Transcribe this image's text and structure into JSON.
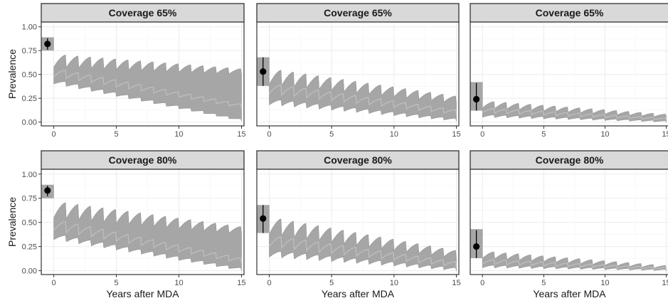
{
  "chart_data": {
    "type": "area",
    "xlabel": "Years after MDA",
    "ylabel": "Prevalence",
    "xlim": [
      -1,
      15.2
    ],
    "ylim": [
      -0.04,
      1.05
    ],
    "x_ticks": [
      "0",
      "5",
      "10",
      "15"
    ],
    "y_ticks": [
      "0.00",
      "0.25",
      "0.50",
      "0.75",
      "1.00"
    ],
    "grid": true,
    "colors": {
      "band": "#a6a6a6",
      "median_line": "#bdbdbd",
      "strip": "#d9d9d9",
      "point": "#000000"
    },
    "panels": [
      {
        "title": "Coverage 65%",
        "row": 0,
        "col": 0,
        "baseline": {
          "x": -0.5,
          "y": 0.82,
          "low": 0.76,
          "high": 0.88,
          "box_low": 0.75,
          "box_high": 0.89
        },
        "band_start": [
          0.4,
          0.58
        ],
        "band_end": [
          0.01,
          0.5
        ],
        "median_start": 0.48,
        "median_end": 0.15
      },
      {
        "title": "Coverage 65%",
        "row": 0,
        "col": 1,
        "baseline": {
          "x": -0.5,
          "y": 0.53,
          "low": 0.38,
          "high": 0.68,
          "box_low": 0.38,
          "box_high": 0.68
        },
        "band_start": [
          0.18,
          0.4
        ],
        "band_end": [
          0.01,
          0.2
        ],
        "median_start": 0.3,
        "median_end": 0.08
      },
      {
        "title": "Coverage 65%",
        "row": 0,
        "col": 2,
        "baseline": {
          "x": -0.5,
          "y": 0.24,
          "low": 0.12,
          "high": 0.41,
          "box_low": 0.12,
          "box_high": 0.42
        },
        "band_start": [
          0.05,
          0.15
        ],
        "band_end": [
          0.0,
          0.05
        ],
        "median_start": 0.1,
        "median_end": 0.02
      },
      {
        "title": "Coverage 80%",
        "row": 1,
        "col": 0,
        "baseline": {
          "x": -0.5,
          "y": 0.83,
          "low": 0.77,
          "high": 0.88,
          "box_low": 0.75,
          "box_high": 0.89
        },
        "band_start": [
          0.32,
          0.55
        ],
        "band_end": [
          0.0,
          0.38
        ],
        "median_start": 0.42,
        "median_end": 0.08
      },
      {
        "title": "Coverage 80%",
        "row": 1,
        "col": 1,
        "baseline": {
          "x": -0.5,
          "y": 0.54,
          "low": 0.39,
          "high": 0.68,
          "box_low": 0.39,
          "box_high": 0.68
        },
        "band_start": [
          0.14,
          0.38
        ],
        "band_end": [
          0.0,
          0.13
        ],
        "median_start": 0.25,
        "median_end": 0.04
      },
      {
        "title": "Coverage 80%",
        "row": 1,
        "col": 2,
        "baseline": {
          "x": -0.5,
          "y": 0.25,
          "low": 0.13,
          "high": 0.42,
          "box_low": 0.13,
          "box_high": 0.43
        },
        "band_start": [
          0.03,
          0.13
        ],
        "band_end": [
          0.0,
          0.02
        ],
        "median_start": 0.07,
        "median_end": 0.01
      }
    ]
  }
}
